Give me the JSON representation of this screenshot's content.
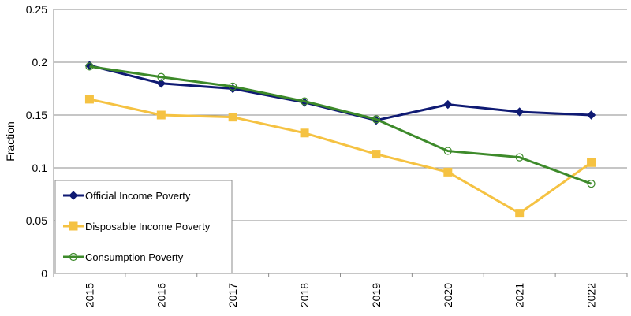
{
  "chart_data": {
    "type": "line",
    "title": "",
    "xlabel": "",
    "ylabel": "Fraction",
    "categories": [
      "2015",
      "2016",
      "2017",
      "2018",
      "2019",
      "2020",
      "2021",
      "2022"
    ],
    "yticks": [
      "0",
      "0.05",
      "0.1",
      "0.15",
      "0.2",
      "0.25"
    ],
    "ylim": [
      0,
      0.25
    ],
    "grid": true,
    "legend_position": "bottom-left",
    "series": [
      {
        "name": "Official Income Poverty",
        "color": "#0f1a73",
        "marker": "diamond",
        "values": [
          0.197,
          0.18,
          0.175,
          0.162,
          0.145,
          0.16,
          0.153,
          0.15
        ]
      },
      {
        "name": "Disposable Income Poverty",
        "color": "#f5c242",
        "marker": "square",
        "values": [
          0.165,
          0.15,
          0.148,
          0.133,
          0.113,
          0.096,
          0.057,
          0.105
        ]
      },
      {
        "name": "Consumption Poverty",
        "color": "#3d8a2a",
        "marker": "circle",
        "values": [
          0.196,
          0.186,
          0.177,
          0.163,
          0.146,
          0.116,
          0.11,
          0.085
        ]
      }
    ]
  }
}
